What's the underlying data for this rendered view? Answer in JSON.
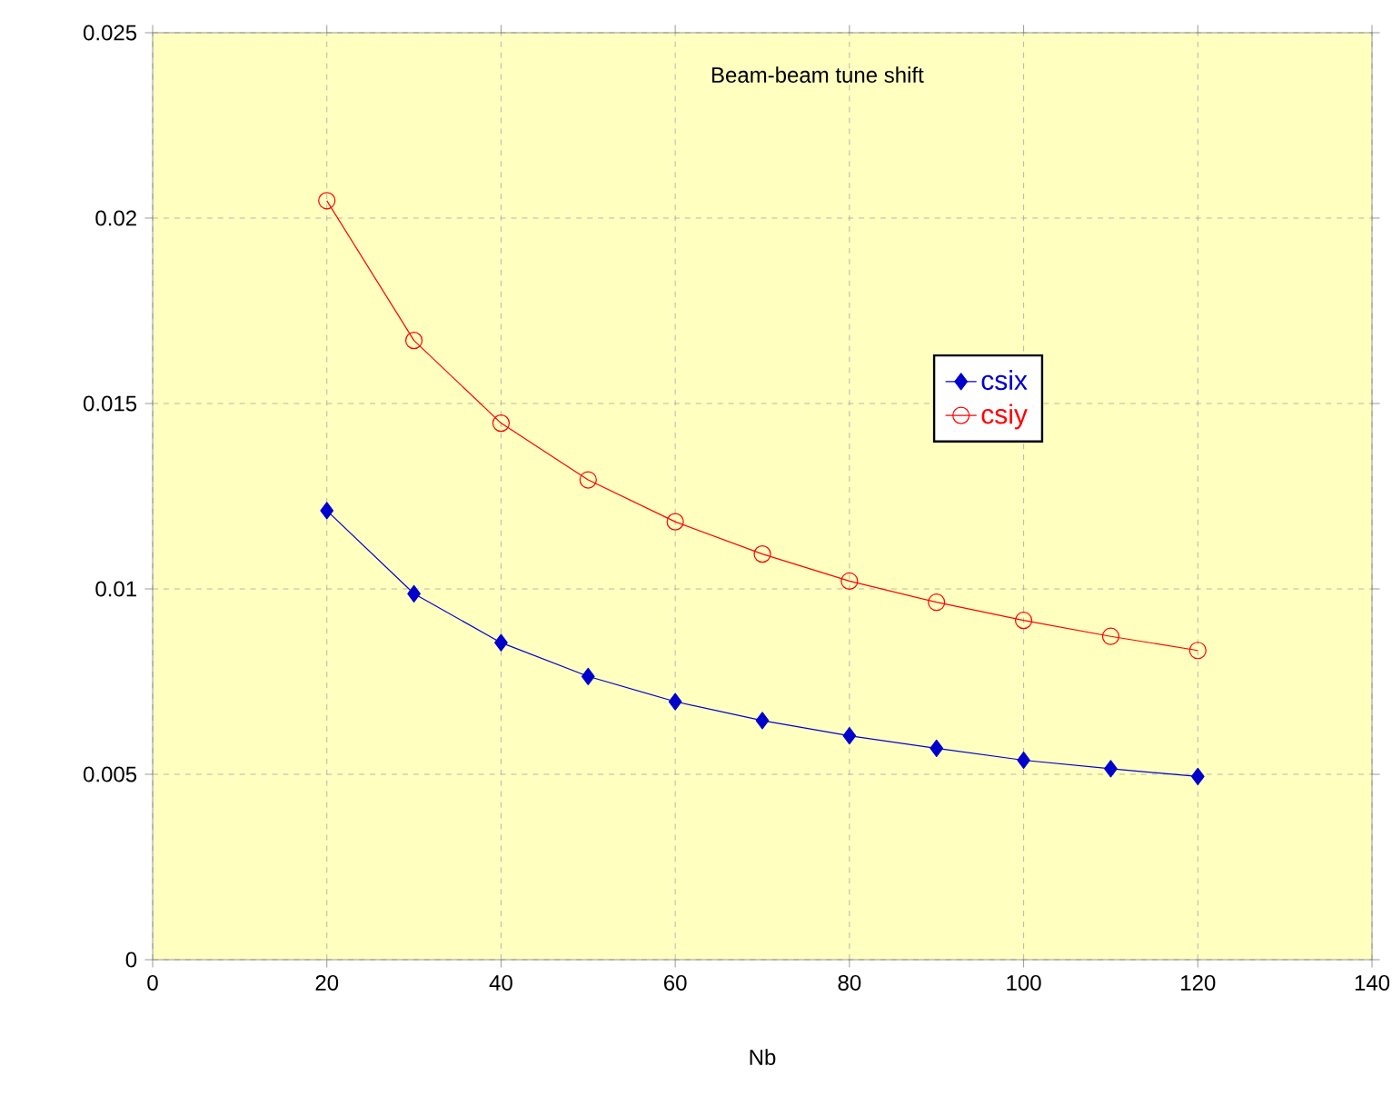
{
  "chart_data": {
    "type": "line",
    "title": "Beam-beam tune shift",
    "xlabel": "Nb",
    "x": [
      20,
      30,
      40,
      50,
      60,
      70,
      80,
      90,
      100,
      110,
      120
    ],
    "series": [
      {
        "name": "csix",
        "color": "#0000cc",
        "marker": "diamond",
        "values": [
          0.01211,
          0.00987,
          0.00855,
          0.00764,
          0.00696,
          0.00645,
          0.00604,
          0.0057,
          0.00538,
          0.00515,
          0.00494
        ]
      },
      {
        "name": "csiy",
        "color": "#ff0000",
        "marker": "circle",
        "values": [
          0.02047,
          0.0167,
          0.01447,
          0.01294,
          0.01181,
          0.01094,
          0.01021,
          0.00964,
          0.00915,
          0.00872,
          0.00834
        ]
      }
    ],
    "xlim": [
      0,
      140
    ],
    "xticks": [
      0,
      20,
      40,
      60,
      80,
      100,
      120,
      140
    ],
    "ylim": [
      0,
      0.025
    ],
    "yticks": [
      0,
      0.005,
      0.01,
      0.015,
      0.02,
      0.025
    ],
    "grid": true,
    "legend": "right",
    "line_style": "solid"
  }
}
